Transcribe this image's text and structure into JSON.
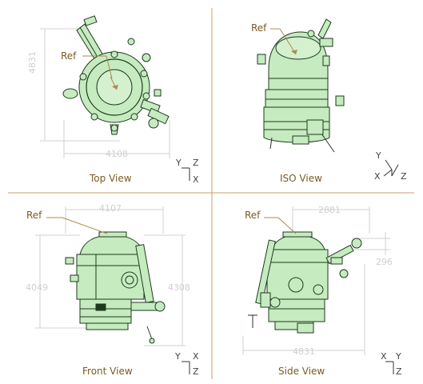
{
  "views": [
    {
      "id": "top",
      "title": "Top View",
      "ref": "Ref",
      "dims": [
        "4831",
        "4108"
      ],
      "axes": [
        "Y",
        "Z",
        "X"
      ]
    },
    {
      "id": "iso",
      "title": "ISO View",
      "ref": "Ref",
      "dims": [],
      "axes": [
        "Y",
        "X",
        "Z"
      ]
    },
    {
      "id": "front",
      "title": "Front View",
      "ref": "Ref",
      "dims": [
        "4107",
        "4049",
        "4308"
      ],
      "axes": [
        "Y",
        "X",
        "Z"
      ]
    },
    {
      "id": "side",
      "title": "Side View",
      "ref": "Ref",
      "dims": [
        "2881",
        "296",
        "4831"
      ],
      "axes": [
        "X",
        "Y",
        "Z"
      ]
    }
  ],
  "colors": {
    "divider": "#c8a064",
    "body_fill": "#c6ebc0",
    "line": "#1d3a1d",
    "leader": "#b08850",
    "dim": "#d2d2d2"
  }
}
